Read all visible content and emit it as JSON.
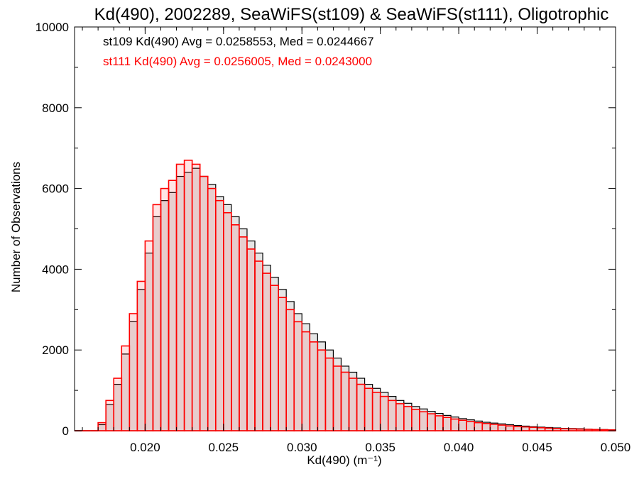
{
  "chart_data": {
    "type": "bar",
    "title": "Kd(490), 2002289, SeaWiFS(st109) & SeaWiFS(st111), Oligotrophic",
    "xlabel": "Kd(490) (m⁻¹)",
    "ylabel": "Number of Observations",
    "xlim": [
      0.0155,
      0.05
    ],
    "ylim": [
      0,
      10000
    ],
    "x_ticks": [
      "0.020",
      "0.025",
      "0.030",
      "0.035",
      "0.040",
      "0.045",
      "0.050"
    ],
    "y_ticks": [
      "0",
      "2000",
      "4000",
      "6000",
      "8000",
      "10000"
    ],
    "grid": false,
    "annotations": [
      {
        "text": "st109 Kd(490) Avg = 0.0258553, Med = 0.0244667",
        "color": "#000000"
      },
      {
        "text": "st111 Kd(490) Avg = 0.0256005, Med = 0.0243000",
        "color": "#ff0000"
      }
    ],
    "series": [
      {
        "name": "st109",
        "color": "#000000",
        "style": "histogram-step",
        "x": [
          0.0155,
          0.016,
          0.0165,
          0.017,
          0.0175,
          0.018,
          0.0185,
          0.019,
          0.0195,
          0.02,
          0.0205,
          0.021,
          0.0215,
          0.022,
          0.0225,
          0.023,
          0.0235,
          0.024,
          0.0245,
          0.025,
          0.0255,
          0.026,
          0.0265,
          0.027,
          0.0275,
          0.028,
          0.0285,
          0.029,
          0.0295,
          0.03,
          0.0305,
          0.031,
          0.0315,
          0.032,
          0.0325,
          0.033,
          0.0335,
          0.034,
          0.0345,
          0.035,
          0.0355,
          0.036,
          0.0365,
          0.037,
          0.0375,
          0.038,
          0.0385,
          0.039,
          0.0395,
          0.04,
          0.0405,
          0.041,
          0.0415,
          0.042,
          0.0425,
          0.043,
          0.0435,
          0.044,
          0.0445,
          0.045,
          0.0455,
          0.046,
          0.0465,
          0.047,
          0.0475,
          0.048,
          0.0485,
          0.049,
          0.0495
        ],
        "values": [
          0,
          0,
          0,
          150,
          650,
          1150,
          1900,
          2700,
          3500,
          4400,
          5300,
          5700,
          5900,
          6300,
          6400,
          6500,
          6300,
          6100,
          5800,
          5600,
          5300,
          5000,
          4700,
          4400,
          4100,
          3800,
          3500,
          3200,
          2900,
          2650,
          2400,
          2200,
          2000,
          1800,
          1600,
          1450,
          1300,
          1150,
          1050,
          950,
          850,
          750,
          680,
          600,
          540,
          480,
          430,
          380,
          340,
          300,
          270,
          240,
          210,
          190,
          170,
          150,
          130,
          115,
          100,
          90,
          80,
          70,
          60,
          55,
          50,
          40,
          35,
          30,
          25
        ]
      },
      {
        "name": "st111",
        "color": "#ff0000",
        "style": "histogram-step",
        "x": [
          0.0155,
          0.016,
          0.0165,
          0.017,
          0.0175,
          0.018,
          0.0185,
          0.019,
          0.0195,
          0.02,
          0.0205,
          0.021,
          0.0215,
          0.022,
          0.0225,
          0.023,
          0.0235,
          0.024,
          0.0245,
          0.025,
          0.0255,
          0.026,
          0.0265,
          0.027,
          0.0275,
          0.028,
          0.0285,
          0.029,
          0.0295,
          0.03,
          0.0305,
          0.031,
          0.0315,
          0.032,
          0.0325,
          0.033,
          0.0335,
          0.034,
          0.0345,
          0.035,
          0.0355,
          0.036,
          0.0365,
          0.037,
          0.0375,
          0.038,
          0.0385,
          0.039,
          0.0395,
          0.04,
          0.0405,
          0.041,
          0.0415,
          0.042,
          0.0425,
          0.043,
          0.0435,
          0.044,
          0.0445,
          0.045,
          0.0455,
          0.046,
          0.0465,
          0.047,
          0.0475,
          0.048,
          0.0485,
          0.049,
          0.0495
        ],
        "values": [
          0,
          0,
          0,
          200,
          750,
          1300,
          2100,
          2900,
          3700,
          4700,
          5600,
          6000,
          6200,
          6600,
          6700,
          6600,
          6300,
          6000,
          5700,
          5400,
          5100,
          4800,
          4500,
          4200,
          3900,
          3600,
          3300,
          3000,
          2700,
          2450,
          2200,
          2000,
          1800,
          1600,
          1450,
          1300,
          1150,
          1050,
          950,
          850,
          750,
          670,
          600,
          530,
          470,
          420,
          370,
          330,
          290,
          260,
          230,
          200,
          180,
          160,
          140,
          120,
          105,
          95,
          85,
          75,
          65,
          55,
          50,
          45,
          40,
          35,
          30,
          25,
          20
        ]
      }
    ]
  }
}
